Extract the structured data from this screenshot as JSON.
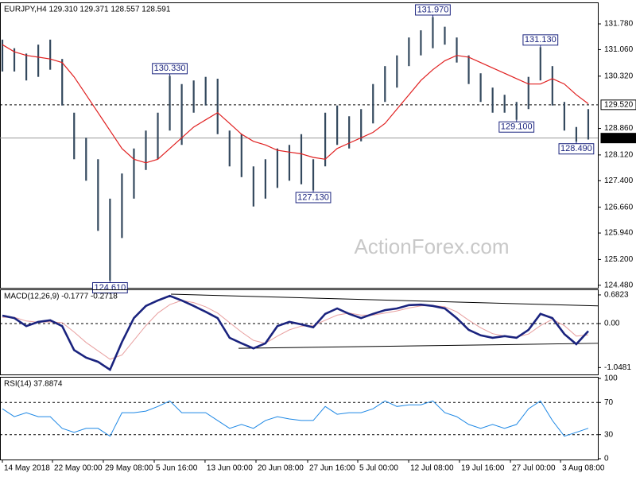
{
  "chart_data": [
    {
      "type": "ohlc",
      "title": "EURJPY,H4  129.310 129.371 128.557 128.591",
      "color": "#34495e",
      "watermark": "ActionForex.com",
      "xlim": [
        -0.2,
        49.8
      ],
      "xticks": [
        {
          "value": 0,
          "label": "14 May 2018"
        },
        {
          "value": 4.19,
          "label": "22 May 00:00"
        },
        {
          "value": 8.44,
          "label": "29 May 08:00"
        },
        {
          "value": 12.7,
          "label": "5 Jun 16:00"
        },
        {
          "value": 16.95,
          "label": "13 Jun 00:00"
        },
        {
          "value": 21.21,
          "label": "20 Jun 08:00"
        },
        {
          "value": 25.53,
          "label": "27 Jun 16:00"
        },
        {
          "value": 29.72,
          "label": "5 Jul 00:00"
        },
        {
          "value": 33.98,
          "label": "12 Jul 08:00"
        },
        {
          "value": 38.23,
          "label": "19 Jul 16:00"
        },
        {
          "value": 42.49,
          "label": "27 Jul 00:00"
        },
        {
          "value": 46.68,
          "label": "3 Aug 08:00"
        }
      ],
      "ylim": [
        124.41,
        132.38
      ],
      "yticks": [
        {
          "value": 131.78,
          "label": "131.780"
        },
        {
          "value": 131.06,
          "label": "131.060"
        },
        {
          "value": 130.32,
          "label": "130.320"
        },
        {
          "value": 128.86,
          "label": "128.860"
        },
        {
          "value": 128.12,
          "label": "128.120"
        },
        {
          "value": 127.4,
          "label": "127.400"
        },
        {
          "value": 126.66,
          "label": "126.660"
        },
        {
          "value": 125.94,
          "label": "125.940"
        },
        {
          "value": 125.2,
          "label": "125.200"
        },
        {
          "value": 124.48,
          "label": "124.480"
        }
      ],
      "high": [
        131.34,
        131.1,
        130.95,
        131.2,
        131.34,
        130.8,
        129.3,
        128.6,
        128.0,
        126.9,
        127.6,
        128.3,
        128.8,
        129.3,
        130.33,
        130.1,
        130.2,
        130.3,
        130.25,
        128.8,
        128.7,
        127.8,
        128.0,
        128.3,
        128.4,
        128.7,
        128.0,
        129.3,
        129.5,
        129.2,
        129.4,
        130.1,
        130.6,
        130.9,
        131.4,
        131.6,
        131.97,
        131.7,
        131.4,
        130.9,
        130.4,
        130.0,
        129.8,
        129.6,
        130.3,
        131.13,
        130.6,
        129.6,
        128.9,
        129.4
      ],
      "low": [
        130.45,
        130.45,
        130.2,
        130.3,
        130.5,
        129.5,
        128.0,
        127.4,
        126.0,
        124.61,
        125.8,
        126.9,
        127.7,
        128.0,
        128.8,
        128.4,
        129.3,
        129.5,
        128.7,
        127.8,
        127.5,
        126.68,
        126.9,
        127.2,
        127.4,
        127.3,
        127.13,
        127.8,
        128.4,
        128.3,
        128.5,
        129.0,
        129.6,
        130.0,
        130.6,
        130.9,
        131.1,
        131.2,
        130.7,
        130.1,
        129.6,
        129.3,
        129.3,
        129.1,
        129.4,
        130.2,
        129.5,
        128.8,
        128.49,
        128.55
      ],
      "ma": {
        "color": "#e02020",
        "values": [
          131.2,
          131.0,
          130.9,
          130.85,
          130.8,
          130.7,
          130.3,
          129.8,
          129.3,
          128.8,
          128.3,
          128.0,
          127.9,
          128.0,
          128.3,
          128.6,
          128.9,
          129.1,
          129.3,
          129.0,
          128.7,
          128.5,
          128.4,
          128.25,
          128.2,
          128.15,
          128.05,
          128.0,
          128.3,
          128.45,
          128.6,
          128.75,
          129.0,
          129.4,
          129.8,
          130.2,
          130.5,
          130.75,
          130.9,
          130.85,
          130.7,
          130.55,
          130.4,
          130.25,
          130.1,
          130.1,
          130.25,
          130.1,
          129.8,
          129.55
        ]
      },
      "levels": [
        {
          "value": 129.52,
          "label": "129.520",
          "style": "dashed"
        },
        {
          "value": 128.591,
          "label": "128.591",
          "style": "solid"
        }
      ],
      "annotations": [
        {
          "label": "131.970",
          "value": 131.97,
          "x": 36,
          "side": "above"
        },
        {
          "label": "130.330",
          "value": 130.33,
          "x": 14,
          "side": "above"
        },
        {
          "label": "131.130",
          "value": 131.13,
          "x": 45,
          "side": "above"
        },
        {
          "label": "129.100",
          "value": 129.1,
          "x": 43,
          "side": "below"
        },
        {
          "label": "128.490",
          "value": 128.49,
          "x": 48,
          "side": "below"
        },
        {
          "label": "127.130",
          "value": 127.13,
          "x": 26,
          "side": "below"
        },
        {
          "label": "124.610",
          "value": 124.61,
          "x": 9,
          "side": "below"
        }
      ]
    },
    {
      "type": "line",
      "title": "MACD(12,26,9) -0.1777 -0.2718",
      "ylim": [
        -1.212,
        0.814
      ],
      "yticks": [
        0.6823,
        {
          "value": 0,
          "label": "0.00"
        },
        -1.0481
      ],
      "levels": [
        0
      ],
      "series": [
        {
          "color": "#1a237e",
          "width": 2.6,
          "values": [
            0.19,
            0.13,
            -0.06,
            0.04,
            0.08,
            -0.06,
            -0.63,
            -0.81,
            -0.91,
            -1.1,
            -0.44,
            0.13,
            0.42,
            0.55,
            0.66,
            0.55,
            0.42,
            0.28,
            0.13,
            -0.34,
            -0.47,
            -0.59,
            -0.47,
            -0.06,
            0.04,
            -0.02,
            -0.09,
            0.23,
            0.36,
            0.23,
            0.13,
            0.23,
            0.32,
            0.36,
            0.44,
            0.45,
            0.42,
            0.36,
            0.13,
            -0.15,
            -0.28,
            -0.34,
            -0.3,
            -0.34,
            -0.15,
            0.23,
            0.13,
            -0.25,
            -0.49,
            -0.18
          ]
        },
        {
          "color": "#e8a0a0",
          "width": 1,
          "values": [
            0.15,
            0.15,
            0.06,
            0.03,
            0.04,
            0.02,
            -0.2,
            -0.45,
            -0.65,
            -0.85,
            -0.75,
            -0.4,
            -0.05,
            0.25,
            0.45,
            0.55,
            0.5,
            0.4,
            0.25,
            0.02,
            -0.2,
            -0.4,
            -0.47,
            -0.3,
            -0.15,
            -0.06,
            -0.05,
            0.08,
            0.2,
            0.25,
            0.2,
            0.2,
            0.25,
            0.3,
            0.37,
            0.42,
            0.43,
            0.4,
            0.28,
            0.08,
            -0.1,
            -0.24,
            -0.3,
            -0.32,
            -0.25,
            -0.05,
            0.1,
            -0.05,
            -0.3,
            -0.27
          ]
        }
      ],
      "trendlines": [
        {
          "x": [
            14.1,
            49.8
          ],
          "values": [
            0.7,
            0.42
          ]
        },
        {
          "x": [
            19.75,
            49.8
          ],
          "values": [
            -0.59,
            -0.47
          ]
        }
      ]
    },
    {
      "type": "line",
      "title": "RSI(14) 37.8874",
      "ylim": [
        -1,
        102
      ],
      "yticks": [
        100,
        70,
        30,
        0
      ],
      "levels": [
        70,
        30
      ],
      "series": [
        {
          "color": "#1e88e5",
          "width": 1,
          "values": [
            62.2,
            52.4,
            57.3,
            52.4,
            52.4,
            37.8,
            32.9,
            37.8,
            37.8,
            28.0,
            57.3,
            57.3,
            59.3,
            65.1,
            72.0,
            57.3,
            57.3,
            57.3,
            47.6,
            37.8,
            42.7,
            37.8,
            47.6,
            52.4,
            49.5,
            47.6,
            47.6,
            65.1,
            55.4,
            57.3,
            57.3,
            62.2,
            72.0,
            65.1,
            67.1,
            67.1,
            72.0,
            57.3,
            52.4,
            42.7,
            37.8,
            42.7,
            37.8,
            42.7,
            62.2,
            72.0,
            47.6,
            28.0,
            32.9,
            37.9
          ]
        }
      ]
    }
  ]
}
